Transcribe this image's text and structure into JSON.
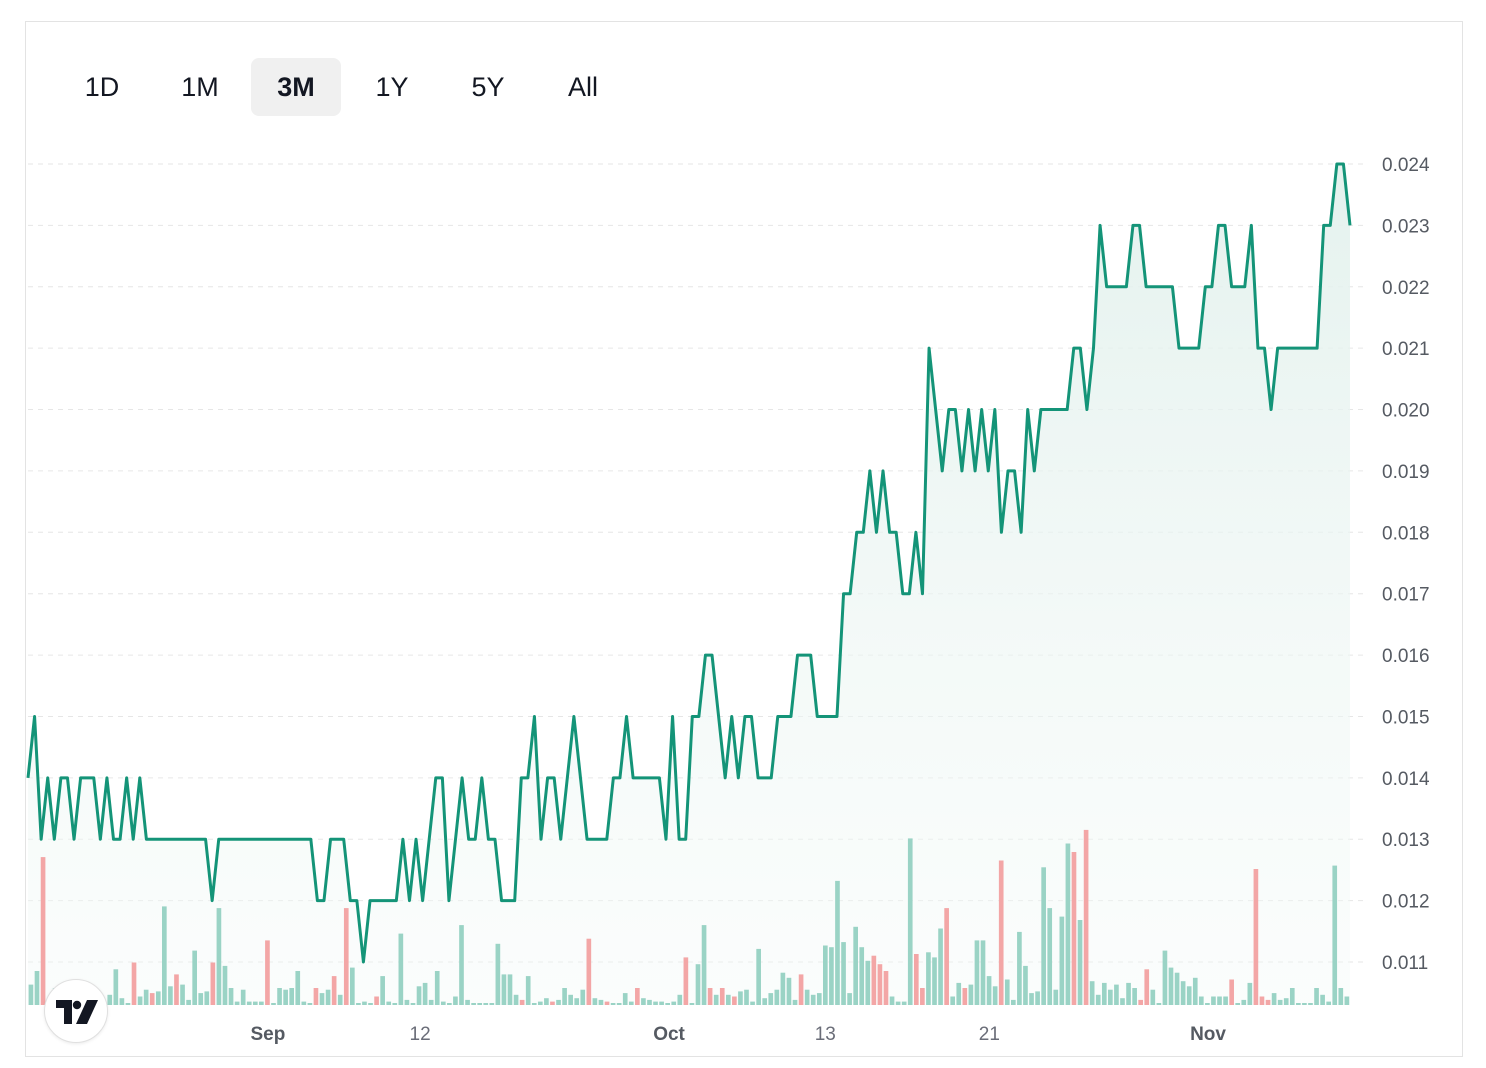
{
  "tabs": [
    {
      "label": "1D",
      "active": false
    },
    {
      "label": "1M",
      "active": false
    },
    {
      "label": "3M",
      "active": true
    },
    {
      "label": "1Y",
      "active": false
    },
    {
      "label": "5Y",
      "active": false
    },
    {
      "label": "All",
      "active": false
    }
  ],
  "colors": {
    "line": "#149478",
    "area": "#e7f3f0",
    "volume_up": "#9ad3c5",
    "volume_down": "#f3a6a6",
    "grid": "#e6e6e6"
  },
  "icons": {
    "logo": "tradingview-logo"
  },
  "chart_data": {
    "type": "line",
    "title": "",
    "ylim": [
      0.0103,
      0.0243
    ],
    "y_ticks": [
      "0.024",
      "0.023",
      "0.022",
      "0.021",
      "0.020",
      "0.019",
      "0.018",
      "0.017",
      "0.016",
      "0.015",
      "0.014",
      "0.013",
      "0.012",
      "0.011"
    ],
    "x_ticks": [
      {
        "label": "Sep",
        "pos": 0.1815,
        "bold": true
      },
      {
        "label": "12",
        "pos": 0.2966,
        "bold": false
      },
      {
        "label": "Oct",
        "pos": 0.4849,
        "bold": true
      },
      {
        "label": "13",
        "pos": 0.6031,
        "bold": false
      },
      {
        "label": "21",
        "pos": 0.7272,
        "bold": false
      },
      {
        "label": "Nov",
        "pos": 0.8926,
        "bold": true
      }
    ],
    "grid": true,
    "price": [
      0.014,
      0.015,
      0.013,
      0.014,
      0.013,
      0.014,
      0.014,
      0.013,
      0.014,
      0.014,
      0.014,
      0.013,
      0.014,
      0.013,
      0.013,
      0.014,
      0.013,
      0.014,
      0.013,
      0.013,
      0.013,
      0.013,
      0.013,
      0.013,
      0.013,
      0.013,
      0.013,
      0.013,
      0.012,
      0.013,
      0.013,
      0.013,
      0.013,
      0.013,
      0.013,
      0.013,
      0.013,
      0.013,
      0.013,
      0.013,
      0.013,
      0.013,
      0.013,
      0.013,
      0.012,
      0.012,
      0.013,
      0.013,
      0.013,
      0.012,
      0.012,
      0.011,
      0.012,
      0.012,
      0.012,
      0.012,
      0.012,
      0.013,
      0.012,
      0.013,
      0.012,
      0.013,
      0.014,
      0.014,
      0.012,
      0.013,
      0.014,
      0.013,
      0.013,
      0.014,
      0.013,
      0.013,
      0.012,
      0.012,
      0.012,
      0.014,
      0.014,
      0.015,
      0.013,
      0.014,
      0.014,
      0.013,
      0.014,
      0.015,
      0.014,
      0.013,
      0.013,
      0.013,
      0.013,
      0.014,
      0.014,
      0.015,
      0.014,
      0.014,
      0.014,
      0.014,
      0.014,
      0.013,
      0.015,
      0.013,
      0.013,
      0.015,
      0.015,
      0.016,
      0.016,
      0.015,
      0.014,
      0.015,
      0.014,
      0.015,
      0.015,
      0.014,
      0.014,
      0.014,
      0.015,
      0.015,
      0.015,
      0.016,
      0.016,
      0.016,
      0.015,
      0.015,
      0.015,
      0.015,
      0.017,
      0.017,
      0.018,
      0.018,
      0.019,
      0.018,
      0.019,
      0.018,
      0.018,
      0.017,
      0.017,
      0.018,
      0.017,
      0.021,
      0.02,
      0.019,
      0.02,
      0.02,
      0.019,
      0.02,
      0.019,
      0.02,
      0.019,
      0.02,
      0.018,
      0.019,
      0.019,
      0.018,
      0.02,
      0.019,
      0.02,
      0.02,
      0.02,
      0.02,
      0.02,
      0.021,
      0.021,
      0.02,
      0.021,
      0.023,
      0.022,
      0.022,
      0.022,
      0.022,
      0.023,
      0.023,
      0.022,
      0.022,
      0.022,
      0.022,
      0.022,
      0.021,
      0.021,
      0.021,
      0.021,
      0.022,
      0.022,
      0.023,
      0.023,
      0.022,
      0.022,
      0.022,
      0.023,
      0.021,
      0.021,
      0.02,
      0.021,
      0.021,
      0.021,
      0.021,
      0.021,
      0.021,
      0.021,
      0.023,
      0.023,
      0.024,
      0.024,
      0.023
    ],
    "volume": [
      {
        "v": 0.12,
        "d": "up"
      },
      {
        "v": 0.2,
        "d": "up"
      },
      {
        "v": 0.87,
        "d": "down"
      },
      {
        "v": 0.03,
        "d": "up"
      },
      {
        "v": 0.1,
        "d": "up"
      },
      {
        "v": 0.05,
        "d": "up"
      },
      {
        "v": 0.04,
        "d": "up"
      },
      {
        "v": 0.02,
        "d": "up"
      },
      {
        "v": 0.03,
        "d": "up"
      },
      {
        "v": 0.02,
        "d": "up"
      },
      {
        "v": 0.05,
        "d": "up"
      },
      {
        "v": 0.06,
        "d": "up"
      },
      {
        "v": 0.02,
        "d": "up"
      },
      {
        "v": 0.06,
        "d": "up"
      },
      {
        "v": 0.21,
        "d": "up"
      },
      {
        "v": 0.04,
        "d": "up"
      },
      {
        "v": 0.01,
        "d": "up"
      },
      {
        "v": 0.25,
        "d": "down"
      },
      {
        "v": 0.05,
        "d": "up"
      },
      {
        "v": 0.09,
        "d": "up"
      },
      {
        "v": 0.07,
        "d": "down"
      },
      {
        "v": 0.08,
        "d": "up"
      },
      {
        "v": 0.58,
        "d": "up"
      },
      {
        "v": 0.11,
        "d": "up"
      },
      {
        "v": 0.18,
        "d": "down"
      },
      {
        "v": 0.12,
        "d": "up"
      },
      {
        "v": 0.03,
        "d": "up"
      },
      {
        "v": 0.32,
        "d": "up"
      },
      {
        "v": 0.07,
        "d": "up"
      },
      {
        "v": 0.08,
        "d": "up"
      },
      {
        "v": 0.25,
        "d": "down"
      },
      {
        "v": 0.57,
        "d": "up"
      },
      {
        "v": 0.23,
        "d": "up"
      },
      {
        "v": 0.1,
        "d": "up"
      },
      {
        "v": 0.02,
        "d": "up"
      },
      {
        "v": 0.09,
        "d": "up"
      },
      {
        "v": 0.02,
        "d": "up"
      },
      {
        "v": 0.02,
        "d": "up"
      },
      {
        "v": 0.02,
        "d": "up"
      },
      {
        "v": 0.38,
        "d": "down"
      },
      {
        "v": 0.01,
        "d": "up"
      },
      {
        "v": 0.1,
        "d": "up"
      },
      {
        "v": 0.09,
        "d": "up"
      },
      {
        "v": 0.1,
        "d": "up"
      },
      {
        "v": 0.2,
        "d": "up"
      },
      {
        "v": 0.02,
        "d": "up"
      },
      {
        "v": 0.01,
        "d": "up"
      },
      {
        "v": 0.1,
        "d": "down"
      },
      {
        "v": 0.07,
        "d": "up"
      },
      {
        "v": 0.09,
        "d": "up"
      },
      {
        "v": 0.17,
        "d": "down"
      },
      {
        "v": 0.06,
        "d": "up"
      },
      {
        "v": 0.57,
        "d": "down"
      },
      {
        "v": 0.22,
        "d": "up"
      },
      {
        "v": 0.01,
        "d": "up"
      },
      {
        "v": 0.02,
        "d": "up"
      },
      {
        "v": 0.01,
        "d": "up"
      },
      {
        "v": 0.05,
        "d": "down"
      },
      {
        "v": 0.17,
        "d": "up"
      },
      {
        "v": 0.02,
        "d": "up"
      },
      {
        "v": 0.01,
        "d": "up"
      },
      {
        "v": 0.42,
        "d": "up"
      },
      {
        "v": 0.03,
        "d": "up"
      },
      {
        "v": 0.01,
        "d": "up"
      },
      {
        "v": 0.11,
        "d": "up"
      },
      {
        "v": 0.13,
        "d": "up"
      },
      {
        "v": 0.03,
        "d": "up"
      },
      {
        "v": 0.2,
        "d": "up"
      },
      {
        "v": 0.02,
        "d": "up"
      },
      {
        "v": 0.01,
        "d": "up"
      },
      {
        "v": 0.05,
        "d": "up"
      },
      {
        "v": 0.47,
        "d": "up"
      },
      {
        "v": 0.03,
        "d": "up"
      },
      {
        "v": 0.01,
        "d": "up"
      },
      {
        "v": 0.01,
        "d": "up"
      },
      {
        "v": 0.01,
        "d": "up"
      },
      {
        "v": 0.01,
        "d": "up"
      },
      {
        "v": 0.36,
        "d": "up"
      },
      {
        "v": 0.18,
        "d": "up"
      },
      {
        "v": 0.18,
        "d": "up"
      },
      {
        "v": 0.06,
        "d": "up"
      },
      {
        "v": 0.03,
        "d": "down"
      },
      {
        "v": 0.17,
        "d": "up"
      },
      {
        "v": 0.01,
        "d": "up"
      },
      {
        "v": 0.02,
        "d": "up"
      },
      {
        "v": 0.04,
        "d": "up"
      },
      {
        "v": 0.02,
        "d": "down"
      },
      {
        "v": 0.03,
        "d": "up"
      },
      {
        "v": 0.1,
        "d": "up"
      },
      {
        "v": 0.06,
        "d": "up"
      },
      {
        "v": 0.04,
        "d": "up"
      },
      {
        "v": 0.09,
        "d": "up"
      },
      {
        "v": 0.39,
        "d": "down"
      },
      {
        "v": 0.04,
        "d": "up"
      },
      {
        "v": 0.03,
        "d": "up"
      },
      {
        "v": 0.02,
        "d": "down"
      },
      {
        "v": 0.01,
        "d": "up"
      },
      {
        "v": 0.01,
        "d": "up"
      },
      {
        "v": 0.07,
        "d": "up"
      },
      {
        "v": 0.02,
        "d": "up"
      },
      {
        "v": 0.1,
        "d": "down"
      },
      {
        "v": 0.04,
        "d": "up"
      },
      {
        "v": 0.03,
        "d": "up"
      },
      {
        "v": 0.02,
        "d": "up"
      },
      {
        "v": 0.02,
        "d": "up"
      },
      {
        "v": 0.01,
        "d": "up"
      },
      {
        "v": 0.02,
        "d": "up"
      },
      {
        "v": 0.06,
        "d": "up"
      },
      {
        "v": 0.28,
        "d": "down"
      },
      {
        "v": 0.01,
        "d": "up"
      },
      {
        "v": 0.24,
        "d": "up"
      },
      {
        "v": 0.47,
        "d": "up"
      },
      {
        "v": 0.1,
        "d": "down"
      },
      {
        "v": 0.06,
        "d": "up"
      },
      {
        "v": 0.1,
        "d": "down"
      },
      {
        "v": 0.06,
        "d": "up"
      },
      {
        "v": 0.05,
        "d": "down"
      },
      {
        "v": 0.08,
        "d": "up"
      },
      {
        "v": 0.09,
        "d": "up"
      },
      {
        "v": 0.02,
        "d": "up"
      },
      {
        "v": 0.33,
        "d": "up"
      },
      {
        "v": 0.04,
        "d": "up"
      },
      {
        "v": 0.07,
        "d": "up"
      },
      {
        "v": 0.09,
        "d": "up"
      },
      {
        "v": 0.19,
        "d": "up"
      },
      {
        "v": 0.16,
        "d": "up"
      },
      {
        "v": 0.03,
        "d": "up"
      },
      {
        "v": 0.18,
        "d": "down"
      },
      {
        "v": 0.09,
        "d": "up"
      },
      {
        "v": 0.06,
        "d": "up"
      },
      {
        "v": 0.07,
        "d": "up"
      },
      {
        "v": 0.35,
        "d": "up"
      },
      {
        "v": 0.34,
        "d": "up"
      },
      {
        "v": 0.73,
        "d": "up"
      },
      {
        "v": 0.37,
        "d": "up"
      },
      {
        "v": 0.07,
        "d": "up"
      },
      {
        "v": 0.46,
        "d": "up"
      },
      {
        "v": 0.34,
        "d": "up"
      },
      {
        "v": 0.26,
        "d": "up"
      },
      {
        "v": 0.29,
        "d": "down"
      },
      {
        "v": 0.24,
        "d": "down"
      },
      {
        "v": 0.2,
        "d": "down"
      },
      {
        "v": 0.05,
        "d": "up"
      },
      {
        "v": 0.02,
        "d": "up"
      },
      {
        "v": 0.02,
        "d": "up"
      },
      {
        "v": 0.98,
        "d": "up"
      },
      {
        "v": 0.3,
        "d": "down"
      },
      {
        "v": 0.1,
        "d": "down"
      },
      {
        "v": 0.31,
        "d": "up"
      },
      {
        "v": 0.28,
        "d": "up"
      },
      {
        "v": 0.45,
        "d": "up"
      },
      {
        "v": 0.57,
        "d": "down"
      },
      {
        "v": 0.05,
        "d": "up"
      },
      {
        "v": 0.13,
        "d": "up"
      },
      {
        "v": 0.1,
        "d": "down"
      },
      {
        "v": 0.12,
        "d": "up"
      },
      {
        "v": 0.38,
        "d": "up"
      },
      {
        "v": 0.38,
        "d": "up"
      },
      {
        "v": 0.17,
        "d": "up"
      },
      {
        "v": 0.11,
        "d": "up"
      },
      {
        "v": 0.85,
        "d": "down"
      },
      {
        "v": 0.15,
        "d": "up"
      },
      {
        "v": 0.03,
        "d": "up"
      },
      {
        "v": 0.43,
        "d": "up"
      },
      {
        "v": 0.23,
        "d": "up"
      },
      {
        "v": 0.07,
        "d": "up"
      },
      {
        "v": 0.08,
        "d": "up"
      },
      {
        "v": 0.81,
        "d": "up"
      },
      {
        "v": 0.57,
        "d": "up"
      },
      {
        "v": 0.09,
        "d": "up"
      },
      {
        "v": 0.52,
        "d": "up"
      },
      {
        "v": 0.95,
        "d": "up"
      },
      {
        "v": 0.9,
        "d": "down"
      },
      {
        "v": 0.5,
        "d": "up"
      },
      {
        "v": 1.03,
        "d": "down"
      },
      {
        "v": 0.14,
        "d": "up"
      },
      {
        "v": 0.06,
        "d": "up"
      },
      {
        "v": 0.13,
        "d": "up"
      },
      {
        "v": 0.09,
        "d": "up"
      },
      {
        "v": 0.12,
        "d": "up"
      },
      {
        "v": 0.04,
        "d": "up"
      },
      {
        "v": 0.13,
        "d": "up"
      },
      {
        "v": 0.1,
        "d": "up"
      },
      {
        "v": 0.03,
        "d": "down"
      },
      {
        "v": 0.21,
        "d": "down"
      },
      {
        "v": 0.09,
        "d": "up"
      },
      {
        "v": 0.01,
        "d": "up"
      },
      {
        "v": 0.32,
        "d": "up"
      },
      {
        "v": 0.22,
        "d": "up"
      },
      {
        "v": 0.19,
        "d": "up"
      },
      {
        "v": 0.14,
        "d": "up"
      },
      {
        "v": 0.11,
        "d": "up"
      },
      {
        "v": 0.16,
        "d": "up"
      },
      {
        "v": 0.05,
        "d": "up"
      },
      {
        "v": 0.01,
        "d": "up"
      },
      {
        "v": 0.05,
        "d": "up"
      },
      {
        "v": 0.05,
        "d": "up"
      },
      {
        "v": 0.05,
        "d": "up"
      },
      {
        "v": 0.15,
        "d": "down"
      },
      {
        "v": 0.01,
        "d": "up"
      },
      {
        "v": 0.03,
        "d": "up"
      },
      {
        "v": 0.13,
        "d": "up"
      },
      {
        "v": 0.8,
        "d": "down"
      },
      {
        "v": 0.05,
        "d": "down"
      },
      {
        "v": 0.03,
        "d": "down"
      },
      {
        "v": 0.07,
        "d": "up"
      },
      {
        "v": 0.03,
        "d": "up"
      },
      {
        "v": 0.04,
        "d": "up"
      },
      {
        "v": 0.1,
        "d": "up"
      },
      {
        "v": 0.01,
        "d": "up"
      },
      {
        "v": 0.01,
        "d": "up"
      },
      {
        "v": 0.01,
        "d": "up"
      },
      {
        "v": 0.1,
        "d": "up"
      },
      {
        "v": 0.06,
        "d": "up"
      },
      {
        "v": 0.02,
        "d": "up"
      },
      {
        "v": 0.82,
        "d": "up"
      },
      {
        "v": 0.1,
        "d": "up"
      },
      {
        "v": 0.05,
        "d": "up"
      }
    ]
  }
}
